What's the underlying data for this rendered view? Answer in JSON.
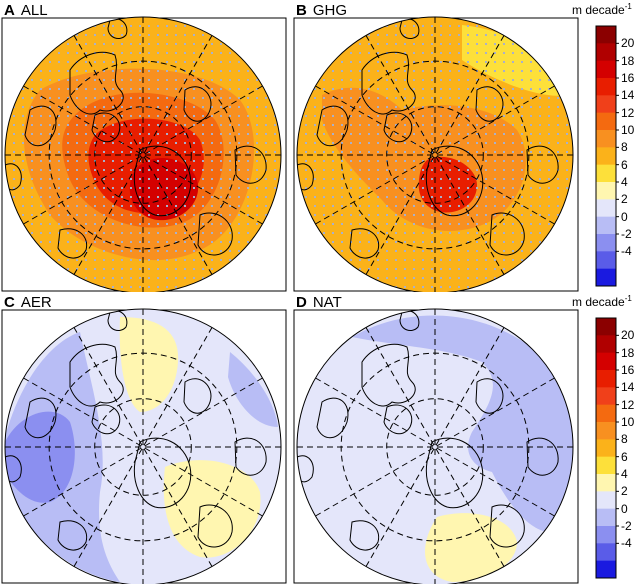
{
  "panels": [
    {
      "letter": "A",
      "name": "ALL"
    },
    {
      "letter": "B",
      "name": "GHG"
    },
    {
      "letter": "C",
      "name": "AER"
    },
    {
      "letter": "D",
      "name": "NAT"
    }
  ],
  "colorbar": {
    "unit_text": "m decade",
    "unit_exponent": "-1",
    "tick_labels": [
      "20",
      "18",
      "16",
      "14",
      "12",
      "10",
      "8",
      "6",
      "4",
      "2",
      "0",
      "-2",
      "-4"
    ],
    "colors_top_to_bottom": [
      "#8b0000",
      "#b00000",
      "#d40000",
      "#e81e00",
      "#f0401a",
      "#f46a10",
      "#f89020",
      "#fbb21a",
      "#fde03a",
      "#fff6b0",
      "#e4e6fa",
      "#b8bdf5",
      "#8b8ff0",
      "#5a5ce8",
      "#1a1ae0"
    ]
  },
  "colors": {
    "land_outline": "#000000",
    "grid_lines": "#000000",
    "stipple": "#a8b0cc"
  }
}
